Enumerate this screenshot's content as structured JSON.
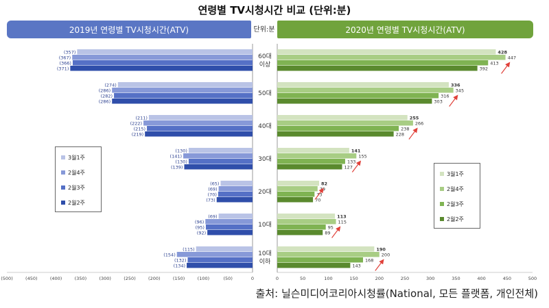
{
  "title": "연령별 TV시청시간 비교 (단위:분)",
  "unit_label": "단위:분",
  "source": "출처: 닐슨미디어코리아시청률(National, 모든 플랫폼, 개인전체)",
  "chart_data": [
    {
      "type": "bar",
      "title": "2019년 연령별 TV시청시간(ATV)",
      "orientation": "horizontal",
      "direction": "left",
      "categories": [
        "60대 이상",
        "50대",
        "40대",
        "30대",
        "20대",
        "10대",
        "10대 이하"
      ],
      "xlim": [
        -500,
        0
      ],
      "xticks": [
        "(500)",
        "(450)",
        "(400)",
        "(350)",
        "(300)",
        "(250)",
        "(200)",
        "(150)",
        "(100)",
        "(50)",
        "0"
      ],
      "series": [
        {
          "name": "3월1주",
          "values": [
            357,
            274,
            211,
            130,
            65,
            69,
            115
          ],
          "labels": [
            "(357)",
            "(274)",
            "(211)",
            "(130)",
            "(65)",
            "(69)",
            "(115)"
          ]
        },
        {
          "name": "2월4주",
          "values": [
            367,
            286,
            222,
            141,
            69,
            96,
            154
          ],
          "labels": [
            "(367)",
            "(286)",
            "(222)",
            "(141)",
            "(69)",
            "(96)",
            "(154)"
          ]
        },
        {
          "name": "2월3주",
          "values": [
            366,
            282,
            215,
            130,
            70,
            95,
            132
          ],
          "labels": [
            "(366)",
            "(282)",
            "(215)",
            "(130)",
            "(70)",
            "(95)",
            "(132)"
          ]
        },
        {
          "name": "2월2주",
          "values": [
            371,
            286,
            219,
            139,
            73,
            92,
            134
          ],
          "labels": [
            "(371)",
            "(286)",
            "(219)",
            "(139)",
            "(73)",
            "(92)",
            "(134)"
          ]
        }
      ],
      "colors": [
        "#b9c3e6",
        "#8799d8",
        "#5570c6",
        "#2f4eaa"
      ],
      "legend": "left-middle"
    },
    {
      "type": "bar",
      "title": "2020년 연령별 TV시청시간(ATV)",
      "orientation": "horizontal",
      "direction": "right",
      "categories": [
        "60대 이상",
        "50대",
        "40대",
        "30대",
        "20대",
        "10대",
        "10대 이하"
      ],
      "xlim": [
        0,
        500
      ],
      "xticks": [
        "0",
        "50",
        "100",
        "150",
        "200",
        "250",
        "300",
        "350",
        "400",
        "450",
        "500"
      ],
      "series": [
        {
          "name": "3월1주",
          "values": [
            428,
            336,
            255,
            141,
            82,
            113,
            190
          ]
        },
        {
          "name": "2월4주",
          "values": [
            447,
            345,
            266,
            155,
            79,
            115,
            200
          ]
        },
        {
          "name": "2월3주",
          "values": [
            413,
            316,
            238,
            133,
            73,
            95,
            168
          ]
        },
        {
          "name": "2월2주",
          "values": [
            392,
            303,
            228,
            127,
            70,
            89,
            143
          ]
        }
      ],
      "colors": [
        "#d3e3c0",
        "#a8cd84",
        "#7fb352",
        "#5a8a2e"
      ],
      "legend": "right-middle",
      "annotations": "red increase arrows"
    }
  ]
}
